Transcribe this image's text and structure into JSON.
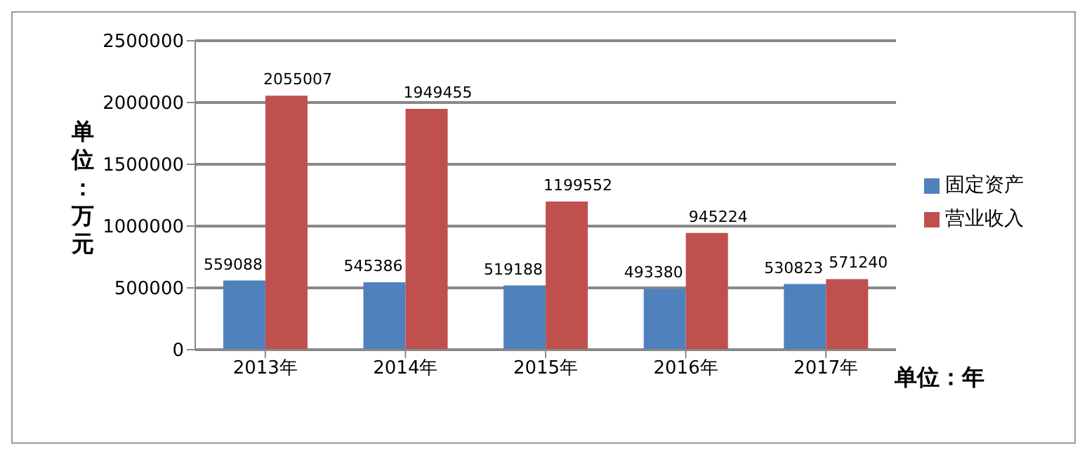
{
  "chart_data": {
    "type": "bar",
    "categories": [
      "2013年",
      "2014年",
      "2015年",
      "2016年",
      "2017年"
    ],
    "series": [
      {
        "name": "固定资产",
        "color": "#4f81bd",
        "values": [
          559088,
          545386,
          519188,
          493380,
          530823
        ]
      },
      {
        "name": "营业收入",
        "color": "#c0504d",
        "values": [
          2055007,
          1949455,
          1199552,
          945224,
          571240
        ]
      }
    ],
    "ylim": [
      0,
      2500000
    ],
    "yticks": [
      0,
      500000,
      1000000,
      1500000,
      2000000,
      2500000
    ],
    "ylabel": "单位：万元",
    "xlabel": "单位：年",
    "grid": "y",
    "legend": "right",
    "data_labels": true
  }
}
